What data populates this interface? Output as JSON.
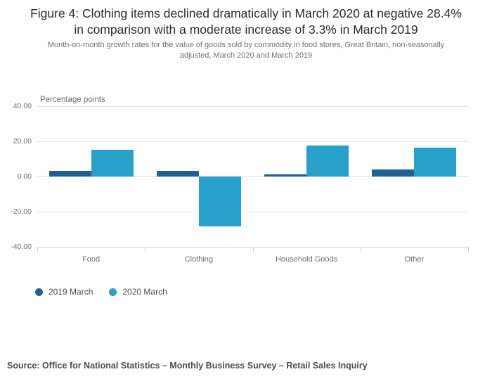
{
  "title": "Figure 4: Clothing items declined dramatically in March 2020 at negative 28.4% in comparison with a moderate increase of 3.3% in March 2019",
  "subtitle": "Month-on-month growth rates for the value of goods sold by commodity in food stores, Great Britain, non-seasonally adjusted, March 2020 and March 2019",
  "source": "Source: Office for National Statistics – Monthly Business Survey – Retail Sales Inquiry",
  "chart_data": {
    "type": "bar",
    "title": "",
    "xlabel": "",
    "ylabel": "Percentage points",
    "categories": [
      "Food",
      "Clothing",
      "Household Goods",
      "Other"
    ],
    "series": [
      {
        "name": "2019 March",
        "color": "#206095",
        "values": [
          3.2,
          3.3,
          1.2,
          4.1
        ]
      },
      {
        "name": "2020 March",
        "color": "#27A0CC",
        "values": [
          15.3,
          -28.4,
          17.6,
          16.3
        ]
      }
    ],
    "ylim": [
      -40,
      40
    ],
    "yticks": [
      40,
      20,
      0,
      -20,
      -40
    ],
    "ytick_labels": [
      "40.00",
      "20.00",
      "0.00",
      "-20.00",
      "-40.00"
    ],
    "grid": true,
    "legend_position": "bottom-left"
  },
  "colors": {
    "series_2019": "#206095",
    "series_2020": "#27A0CC",
    "gridline": "#e6e6e6",
    "axis": "#c7d2df",
    "label_gray": "#707070"
  }
}
